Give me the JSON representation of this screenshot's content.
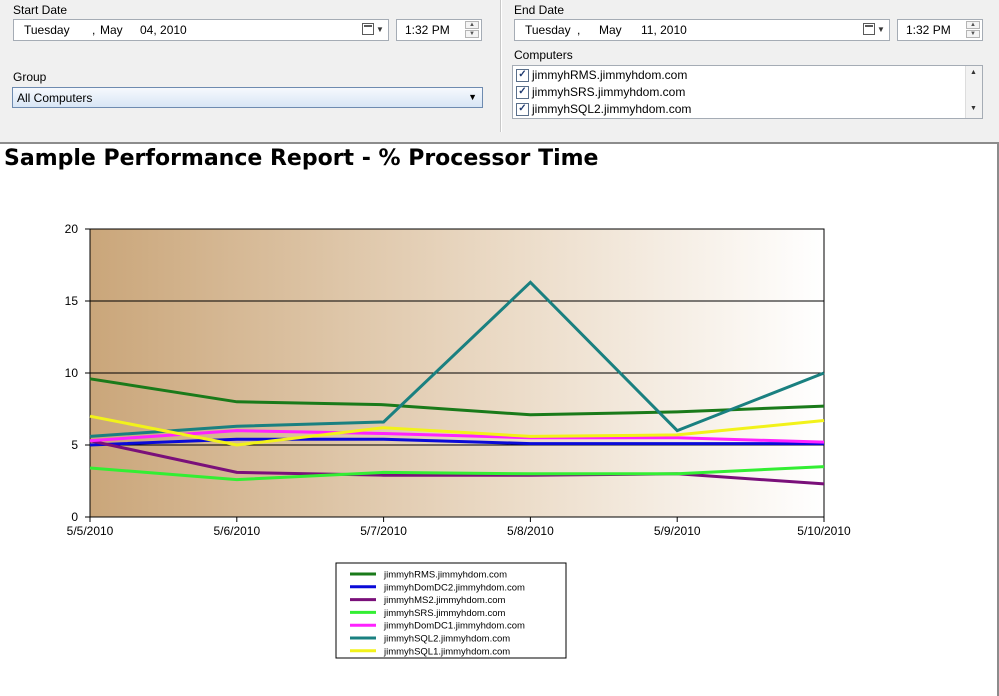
{
  "params": {
    "start_date": {
      "label": "Start Date",
      "weekday": "Tuesday",
      "sep": ",",
      "month": "May",
      "daynum": "04, 2010",
      "time": "1:32 PM"
    },
    "end_date": {
      "label": "End Date",
      "weekday": "Tuesday",
      "sep": ",",
      "month": "May",
      "daynum": "11, 2010",
      "time": "1:32 PM"
    },
    "group": {
      "label": "Group",
      "value": "All Computers"
    },
    "computers": {
      "label": "Computers",
      "items": [
        {
          "name": "jimmyhRMS.jimmyhdom.com",
          "checked": true
        },
        {
          "name": "jimmyhSRS.jimmyhdom.com",
          "checked": true
        },
        {
          "name": "jimmyhSQL2.jimmyhdom.com",
          "checked": true
        }
      ]
    }
  },
  "report": {
    "title": "Sample Performance Report - % Processor Time"
  },
  "chart_data": {
    "type": "line",
    "x": [
      "5/5/2010",
      "5/6/2010",
      "5/7/2010",
      "5/8/2010",
      "5/9/2010",
      "5/10/2010"
    ],
    "ylim": [
      0,
      20
    ],
    "yticks": [
      0,
      5,
      10,
      15,
      20
    ],
    "grid": "horizontal",
    "background": "gradient tan to white",
    "legend_position": "bottom",
    "series": [
      {
        "name": "jimmyhRMS.jimmyhdom.com",
        "color": "#1a7a1a",
        "values": [
          9.6,
          8.0,
          7.8,
          7.1,
          7.3,
          7.7
        ]
      },
      {
        "name": "jimmyhDomDC2.jimmyhdom.com",
        "color": "#0a0ad8",
        "values": [
          5.0,
          5.4,
          5.4,
          5.1,
          5.1,
          5.1
        ]
      },
      {
        "name": "jimmyhMS2.jimmyhdom.com",
        "color": "#7a107a",
        "values": [
          5.3,
          3.1,
          2.9,
          2.9,
          3.0,
          2.3
        ]
      },
      {
        "name": "jimmyhSRS.jimmyhdom.com",
        "color": "#33ee33",
        "values": [
          3.4,
          2.6,
          3.1,
          3.0,
          3.0,
          3.5
        ]
      },
      {
        "name": "jimmyhDomDC1.jimmyhdom.com",
        "color": "#ff22ff",
        "values": [
          5.3,
          6.0,
          5.8,
          5.5,
          5.5,
          5.2
        ]
      },
      {
        "name": "jimmyhSQL2.jimmyhdom.com",
        "color": "#1a8080",
        "values": [
          5.6,
          6.3,
          6.6,
          16.3,
          6.0,
          10.0
        ]
      },
      {
        "name": "jimmyhSQL1.jimmyhdom.com",
        "color": "#f2f21a",
        "values": [
          7.0,
          5.0,
          6.2,
          5.6,
          5.7,
          6.7
        ]
      }
    ]
  }
}
